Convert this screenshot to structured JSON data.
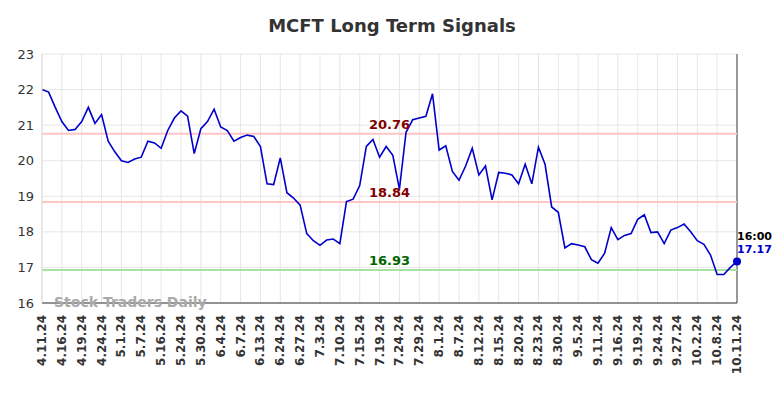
{
  "chart_data": {
    "type": "line",
    "title": "MCFT Long Term Signals",
    "watermark": "Stock Traders Daily",
    "last_time": "16:00",
    "color": "#0000cc",
    "grid": true,
    "ylim": [
      16,
      23
    ],
    "yticks": [
      16,
      17,
      18,
      19,
      20,
      21,
      22,
      23
    ],
    "categories": [
      "4.11.24",
      null,
      null,
      "4.16.24",
      null,
      null,
      "4.19.24",
      null,
      null,
      "4.24.24",
      null,
      null,
      "5.1.24",
      null,
      null,
      "5.7.24",
      null,
      null,
      "5.16.24",
      null,
      null,
      "5.24.24",
      null,
      null,
      "5.30.24",
      null,
      null,
      "6.4.24",
      null,
      null,
      "6.7.24",
      null,
      null,
      "6.13.24",
      null,
      null,
      "6.24.24",
      null,
      null,
      "6.27.24",
      null,
      null,
      "7.3.24",
      null,
      null,
      "7.10.24",
      null,
      null,
      "7.15.24",
      null,
      null,
      "7.19.24",
      null,
      null,
      "7.24.24",
      null,
      null,
      "7.29.24",
      null,
      null,
      "8.1.24",
      null,
      null,
      "8.7.24",
      null,
      null,
      "8.12.24",
      null,
      null,
      "8.15.24",
      null,
      null,
      "8.20.24",
      null,
      null,
      "8.23.24",
      null,
      null,
      "8.30.24",
      null,
      null,
      "9.5.24",
      null,
      null,
      "9.11.24",
      null,
      null,
      "9.16.24",
      null,
      null,
      "9.19.24",
      null,
      null,
      "9.24.24",
      null,
      null,
      "9.27.24",
      null,
      null,
      "10.2.24",
      null,
      null,
      "10.8.24",
      null,
      null,
      "10.11.24"
    ],
    "values": [
      22.0,
      21.93,
      21.5,
      21.1,
      20.85,
      20.88,
      21.1,
      21.5,
      21.05,
      21.3,
      20.55,
      20.25,
      20.0,
      19.95,
      20.05,
      20.1,
      20.55,
      20.5,
      20.35,
      20.85,
      21.2,
      21.4,
      21.25,
      20.2,
      20.9,
      21.1,
      21.45,
      20.95,
      20.85,
      20.55,
      20.65,
      20.72,
      20.68,
      20.4,
      19.35,
      19.33,
      20.08,
      19.1,
      18.95,
      18.75,
      17.95,
      17.75,
      17.62,
      17.77,
      17.8,
      17.67,
      18.85,
      18.92,
      19.3,
      20.4,
      20.6,
      20.1,
      20.4,
      20.15,
      19.2,
      20.8,
      21.15,
      21.2,
      21.25,
      21.88,
      20.3,
      20.42,
      19.7,
      19.45,
      19.85,
      20.35,
      19.6,
      19.85,
      18.9,
      19.67,
      19.65,
      19.6,
      19.35,
      19.9,
      19.35,
      20.38,
      19.9,
      18.7,
      18.55,
      17.55,
      17.67,
      17.63,
      17.58,
      17.22,
      17.12,
      17.4,
      18.12,
      17.78,
      17.9,
      17.95,
      18.35,
      18.48,
      17.98,
      18.0,
      17.67,
      18.05,
      18.12,
      18.22,
      18.0,
      17.75,
      17.65,
      17.35,
      16.8,
      16.8,
      17.0,
      17.17
    ],
    "lines": [
      {
        "value": 20.76,
        "color": "#ffc4c4",
        "label_color": "#800000"
      },
      {
        "value": 18.84,
        "color": "#ffc4c4",
        "label_color": "#800000"
      },
      {
        "value": 16.93,
        "color": "#a6e3a0",
        "label_color": "#006400"
      }
    ]
  }
}
